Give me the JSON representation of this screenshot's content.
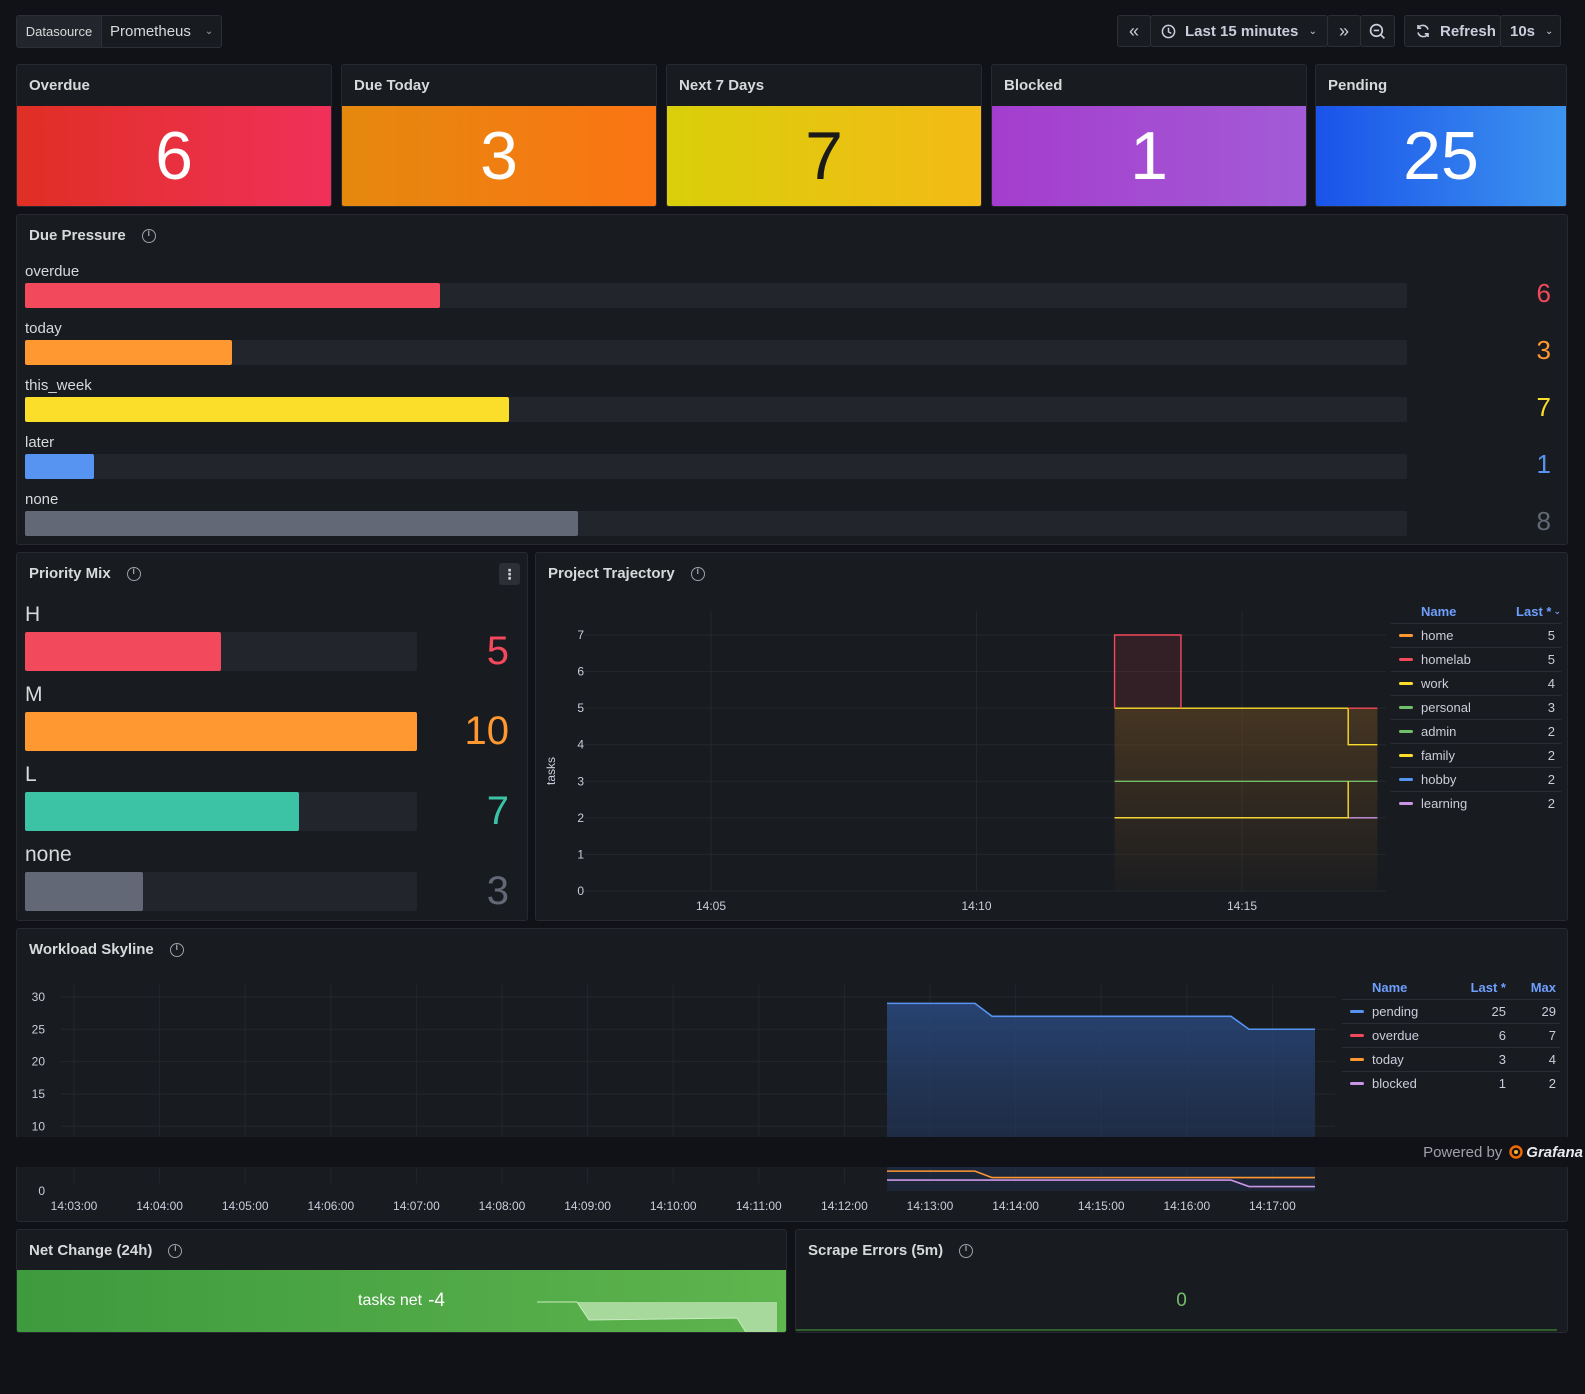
{
  "toolbar": {
    "datasource_label": "Datasource",
    "datasource_value": "Prometheus",
    "time_range": "Last 15 minutes",
    "refresh_label": "Refresh",
    "refresh_interval": "10s"
  },
  "stats": [
    {
      "title": "Overdue",
      "value": "6",
      "color_from": "#e02f24",
      "color_to": "#f0305a"
    },
    {
      "title": "Due Today",
      "value": "3",
      "color_from": "#e5890e",
      "color_to": "#fb7414"
    },
    {
      "title": "Next 7 Days",
      "value": "7",
      "color_from": "#d9cf0a",
      "color_to": "#f4ba16"
    },
    {
      "title": "Blocked",
      "value": "1",
      "color_from": "#a43dce",
      "color_to": "#a35bd6"
    },
    {
      "title": "Pending",
      "value": "25",
      "color_from": "#1a53ea",
      "color_to": "#3d94ef"
    }
  ],
  "due_pressure": {
    "title": "Due Pressure",
    "max": 20,
    "rows": [
      {
        "label": "overdue",
        "value": 6,
        "display": "6",
        "color": "#f2495c"
      },
      {
        "label": "today",
        "value": 3,
        "display": "3",
        "color": "#ff9830"
      },
      {
        "label": "this_week",
        "value": 7,
        "display": "7",
        "color": "#fade2a"
      },
      {
        "label": "later",
        "value": 1,
        "display": "1",
        "color": "#5794f2"
      },
      {
        "label": "none",
        "value": 8,
        "display": "8",
        "color": "#636877"
      }
    ]
  },
  "priority_mix": {
    "title": "Priority Mix",
    "max": 10,
    "rows": [
      {
        "label": "H",
        "value": 5,
        "display": "5",
        "color": "#f2495c"
      },
      {
        "label": "M",
        "value": 10,
        "display": "10",
        "color": "#ff9830"
      },
      {
        "label": "L",
        "value": 7,
        "display": "7",
        "color": "#3cc3a6"
      },
      {
        "label": "none",
        "value": 3,
        "display": "3",
        "color": "#636877"
      }
    ]
  },
  "project_trajectory": {
    "title": "Project Trajectory",
    "ylabel": "tasks",
    "yticks": [
      "0",
      "1",
      "2",
      "3",
      "4",
      "5",
      "6",
      "7"
    ],
    "xticks": [
      "14:05",
      "14:10",
      "14:15"
    ],
    "legend_headers": {
      "name": "Name",
      "last": "Last *"
    },
    "legend": [
      {
        "name": "home",
        "last": "5",
        "color": "#ff9830"
      },
      {
        "name": "homelab",
        "last": "5",
        "color": "#f2495c"
      },
      {
        "name": "work",
        "last": "4",
        "color": "#fade2a"
      },
      {
        "name": "personal",
        "last": "3",
        "color": "#73bf69"
      },
      {
        "name": "admin",
        "last": "2",
        "color": "#73bf69"
      },
      {
        "name": "family",
        "last": "2",
        "color": "#fade2a"
      },
      {
        "name": "hobby",
        "last": "2",
        "color": "#5794f2"
      },
      {
        "name": "learning",
        "last": "2",
        "color": "#ca95e5"
      }
    ]
  },
  "workload_skyline": {
    "title": "Workload Skyline",
    "yticks": [
      "30",
      "25",
      "20",
      "15",
      "10"
    ],
    "ytick_zero": "0",
    "xticks": [
      "14:03:00",
      "14:04:00",
      "14:05:00",
      "14:06:00",
      "14:07:00",
      "14:08:00",
      "14:09:00",
      "14:10:00",
      "14:11:00",
      "14:12:00",
      "14:13:00",
      "14:14:00",
      "14:15:00",
      "14:16:00",
      "14:17:00"
    ],
    "legend_headers": {
      "name": "Name",
      "last": "Last *",
      "max": "Max"
    },
    "legend": [
      {
        "name": "pending",
        "last": "25",
        "max": "29",
        "color": "#5794f2"
      },
      {
        "name": "overdue",
        "last": "6",
        "max": "7",
        "color": "#f2495c"
      },
      {
        "name": "today",
        "last": "3",
        "max": "4",
        "color": "#ff9830"
      },
      {
        "name": "blocked",
        "last": "1",
        "max": "2",
        "color": "#ca95e5"
      }
    ]
  },
  "powered_by": {
    "text": "Powered by",
    "brand": "Grafana"
  },
  "net_change": {
    "title": "Net Change (24h)",
    "label": "tasks net",
    "value": "-4"
  },
  "scrape_errors": {
    "title": "Scrape Errors (5m)",
    "value": "0"
  }
}
